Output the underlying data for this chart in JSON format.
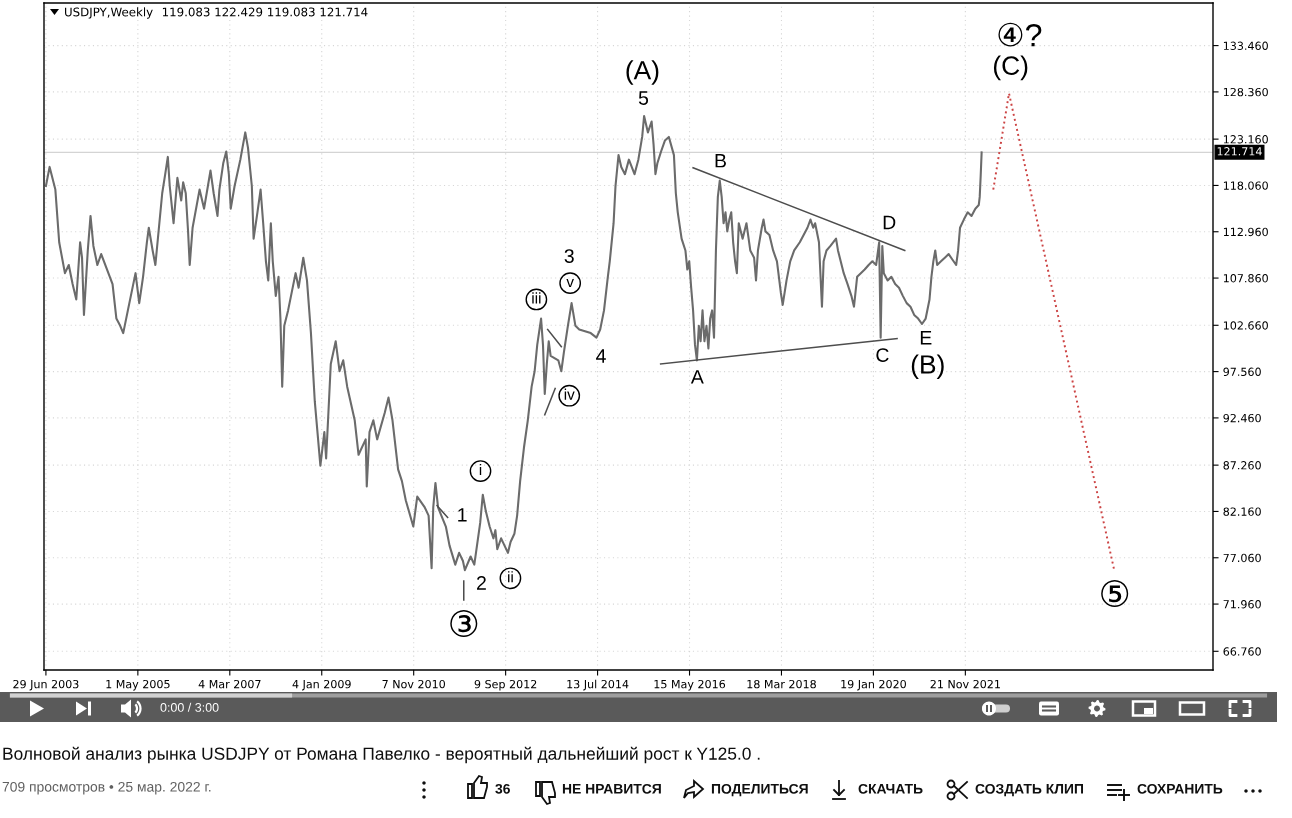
{
  "chart_data": {
    "type": "line",
    "title": "USDJPY,Weekly",
    "subtitle": "119.083 122.429 119.083 121.714",
    "xlim": [
      "2003-06-15",
      "2026-11-05"
    ],
    "ylim": [
      64.7,
      138.15
    ],
    "xticks": [
      {
        "value": "2003-06-29",
        "label": "29 Jun 2003"
      },
      {
        "value": "2005-05-01",
        "label": "1 May 2005"
      },
      {
        "value": "2007-03-04",
        "label": "4 Mar 2007"
      },
      {
        "value": "2009-01-04",
        "label": "4 Jan 2009"
      },
      {
        "value": "2010-11-07",
        "label": "7 Nov 2010"
      },
      {
        "value": "2012-09-09",
        "label": "9 Sep 2012"
      },
      {
        "value": "2014-07-13",
        "label": "13 Jul 2014"
      },
      {
        "value": "2016-05-15",
        "label": "15 May 2016"
      },
      {
        "value": "2018-03-18",
        "label": "18 Mar 2018"
      },
      {
        "value": "2020-01-19",
        "label": "19 Jan 2020"
      },
      {
        "value": "2021-11-21",
        "label": "21 Nov 2021"
      }
    ],
    "yticks": [
      {
        "value": 133.46,
        "label": "133.460"
      },
      {
        "value": 128.36,
        "label": "128.360"
      },
      {
        "value": 123.16,
        "label": "123.160"
      },
      {
        "value": 118.06,
        "label": "118.060"
      },
      {
        "value": 112.96,
        "label": "112.960"
      },
      {
        "value": 107.86,
        "label": "107.860"
      },
      {
        "value": 102.66,
        "label": "102.660"
      },
      {
        "value": 97.56,
        "label": "97.560"
      },
      {
        "value": 92.46,
        "label": "92.460"
      },
      {
        "value": 87.26,
        "label": "87.260"
      },
      {
        "value": 82.16,
        "label": "82.160"
      },
      {
        "value": 77.06,
        "label": "77.060"
      },
      {
        "value": 71.96,
        "label": "71.960"
      },
      {
        "value": 66.76,
        "label": "66.760"
      }
    ],
    "grid": true,
    "line_style": "solid",
    "series": [
      {
        "color": "#6b6b6b",
        "x": [
          "2003-06-29",
          "2003-07-26",
          "2003-09-06",
          "2003-10-04",
          "2003-11-15",
          "2003-12-13",
          "2004-01-10",
          "2004-02-06",
          "2004-03-05",
          "2004-03-19",
          "2004-04-02",
          "2004-04-30",
          "2004-05-20",
          "2004-06-10",
          "2004-07-09",
          "2004-08-06",
          "2004-10-28",
          "2004-11-25",
          "2004-12-23",
          "2005-01-14",
          "2005-02-17",
          "2005-04-14",
          "2005-05-11",
          "2005-06-08",
          "2005-07-06",
          "2005-07-20",
          "2005-08-17",
          "2005-09-06",
          "2005-10-26",
          "2005-11-17",
          "2005-12-06",
          "2005-12-20",
          "2006-01-17",
          "2006-02-14",
          "2006-03-14",
          "2006-03-28",
          "2006-04-16",
          "2006-05-03",
          "2006-05-15",
          "2006-06-05",
          "2006-07-26",
          "2006-08-28",
          "2006-09-25",
          "2006-10-14",
          "2006-11-06",
          "2006-12-04",
          "2006-12-18",
          "2007-01-15",
          "2007-02-06",
          "2007-02-25",
          "2007-03-11",
          "2007-04-08",
          "2007-05-20",
          "2007-06-25",
          "2007-07-15",
          "2007-08-12",
          "2007-08-25",
          "2007-09-22",
          "2007-10-15",
          "2007-11-03",
          "2007-11-23",
          "2007-12-10",
          "2007-12-29",
          "2008-01-12",
          "2008-02-03",
          "2008-02-23",
          "2008-03-08",
          "2008-03-21",
          "2008-04-05",
          "2008-05-03",
          "2008-06-27",
          "2008-07-19",
          "2008-08-22",
          "2008-09-18",
          "2008-10-17",
          "2008-11-14",
          "2008-12-25",
          "2009-01-23",
          "2009-02-05",
          "2009-02-19",
          "2009-03-11",
          "2009-04-16",
          "2009-05-14",
          "2009-06-10",
          "2009-07-09",
          "2009-09-02",
          "2009-09-30",
          "2009-11-21",
          "2009-11-29",
          "2009-12-19",
          "2010-01-16",
          "2010-02-13",
          "2010-04-09",
          "2010-05-07",
          "2010-06-05",
          "2010-07-16",
          "2010-08-13",
          "2010-09-10",
          "2010-11-04",
          "2010-12-03",
          "2011-01-27",
          "2011-02-24",
          "2011-03-18",
          "2011-03-30",
          "2011-04-15",
          "2011-05-04",
          "2011-06-30",
          "2011-07-27",
          "2011-09-07",
          "2011-10-05",
          "2011-11-02",
          "2011-11-16",
          "2011-12-28",
          "2012-01-24",
          "2012-03-07",
          "2012-03-26",
          "2012-04-17",
          "2012-05-15",
          "2012-06-12",
          "2012-06-26",
          "2012-07-10",
          "2012-08-07",
          "2012-09-26",
          "2012-10-15",
          "2012-11-12",
          "2012-12-02",
          "2012-12-24",
          "2013-01-21",
          "2013-02-18",
          "2013-03-18",
          "2013-04-09",
          "2013-04-28",
          "2013-05-26",
          "2013-06-09",
          "2013-06-22",
          "2013-07-07",
          "2013-07-21",
          "2013-08-04",
          "2013-09-29",
          "2013-10-21",
          "2013-11-09",
          "2013-12-08",
          "2014-01-04",
          "2014-02-01",
          "2014-03-01",
          "2014-05-24",
          "2014-07-05",
          "2014-08-01",
          "2014-08-29",
          "2014-09-26",
          "2014-10-10",
          "2014-11-07",
          "2014-11-21",
          "2014-12-13",
          "2015-01-02",
          "2015-01-29",
          "2015-02-27",
          "2015-04-09",
          "2015-05-07",
          "2015-06-04",
          "2015-06-18",
          "2015-07-16",
          "2015-08-12",
          "2015-08-26",
          "2015-09-09",
          "2015-09-23",
          "2015-10-20",
          "2015-11-17",
          "2015-12-16",
          "2016-01-22",
          "2016-02-05",
          "2016-02-19",
          "2016-03-18",
          "2016-04-15",
          "2016-04-29",
          "2016-05-13",
          "2016-05-27",
          "2016-06-10",
          "2016-06-24",
          "2016-07-08",
          "2016-07-22",
          "2016-08-04",
          "2016-08-18",
          "2016-09-01",
          "2016-09-16",
          "2016-09-30",
          "2016-10-13",
          "2016-10-27",
          "2016-11-10",
          "2016-11-24",
          "2016-12-08",
          "2016-12-22",
          "2017-01-05",
          "2017-01-19",
          "2017-02-02",
          "2017-02-15",
          "2017-03-02",
          "2017-03-16",
          "2017-03-30",
          "2017-04-13",
          "2017-04-26",
          "2017-05-10",
          "2017-06-07",
          "2017-07-05",
          "2017-08-02",
          "2017-08-30",
          "2017-09-13",
          "2017-09-27",
          "2017-10-25",
          "2017-11-07",
          "2017-11-21",
          "2017-12-20",
          "2018-01-16",
          "2018-02-13",
          "2018-03-13",
          "2018-03-27",
          "2018-04-24",
          "2018-05-21",
          "2018-06-19",
          "2018-07-30",
          "2018-09-24",
          "2018-10-16",
          "2018-11-05",
          "2018-11-19",
          "2018-12-17",
          "2019-01-08",
          "2019-01-20",
          "2019-02-10",
          "2019-03-11",
          "2019-04-21",
          "2019-05-05",
          "2019-06-16",
          "2019-07-14",
          "2019-08-11",
          "2019-08-30",
          "2019-09-22",
          "2019-10-19",
          "2019-11-16",
          "2019-12-15",
          "2020-01-11",
          "2020-02-08",
          "2020-03-01",
          "2020-03-12",
          "2020-03-24",
          "2020-04-04",
          "2020-05-02",
          "2020-05-29",
          "2020-06-26",
          "2020-07-24",
          "2020-08-21",
          "2020-09-18",
          "2020-10-16",
          "2020-11-12",
          "2020-12-11",
          "2021-01-08",
          "2021-02-04",
          "2021-03-04",
          "2021-03-18",
          "2021-04-01",
          "2021-04-15",
          "2021-04-29",
          "2021-05-27",
          "2021-06-24",
          "2021-07-22",
          "2021-08-18",
          "2021-09-15",
          "2021-09-29",
          "2021-10-13",
          "2021-11-10",
          "2021-12-08",
          "2022-01-05",
          "2022-02-02",
          "2022-02-27",
          "2022-03-06",
          "2022-03-13",
          "2022-03-20"
        ],
        "values": [
          118.0,
          120.1,
          117.6,
          111.8,
          108.4,
          109.3,
          107.2,
          105.5,
          111.8,
          110.1,
          103.8,
          110.9,
          114.7,
          111.4,
          109.3,
          110.5,
          107.2,
          103.4,
          102.6,
          101.8,
          104.3,
          108.4,
          105.1,
          108.0,
          111.8,
          113.4,
          110.9,
          109.3,
          117.2,
          119.3,
          121.2,
          118.0,
          113.9,
          118.9,
          116.4,
          118.4,
          117.2,
          113.0,
          109.3,
          113.4,
          117.6,
          115.5,
          118.0,
          119.7,
          117.2,
          114.7,
          117.6,
          120.5,
          121.8,
          119.3,
          115.5,
          118.0,
          120.9,
          123.9,
          122.2,
          118.0,
          112.2,
          115.1,
          117.6,
          113.9,
          109.7,
          107.6,
          113.9,
          109.7,
          105.9,
          108.0,
          103.4,
          95.9,
          102.6,
          104.3,
          108.4,
          106.8,
          110.1,
          107.6,
          101.8,
          94.3,
          87.2,
          90.9,
          88.0,
          92.2,
          98.4,
          100.9,
          97.6,
          98.8,
          95.9,
          92.2,
          88.4,
          90.1,
          84.9,
          90.9,
          92.2,
          90.1,
          93.0,
          94.7,
          92.2,
          86.8,
          85.5,
          83.4,
          80.5,
          83.8,
          82.6,
          81.7,
          75.9,
          82.6,
          85.3,
          82.6,
          80.5,
          78.4,
          76.3,
          77.6,
          76.7,
          75.7,
          77.2,
          76.3,
          80.9,
          84.0,
          82.2,
          80.5,
          79.2,
          80.1,
          78.0,
          79.2,
          77.6,
          78.8,
          79.7,
          81.7,
          85.5,
          89.2,
          92.2,
          95.9,
          97.6,
          100.5,
          103.4,
          100.5,
          95.1,
          98.4,
          100.9,
          99.3,
          98.8,
          97.6,
          99.7,
          102.6,
          105.1,
          102.6,
          102.2,
          101.8,
          101.3,
          102.2,
          104.3,
          108.0,
          109.7,
          113.9,
          118.0,
          121.4,
          120.1,
          119.3,
          120.9,
          119.3,
          120.9,
          123.4,
          125.7,
          123.9,
          125.1,
          122.6,
          119.3,
          120.5,
          121.8,
          123.0,
          123.4,
          121.4,
          117.2,
          115.1,
          112.2,
          110.9,
          108.8,
          109.7,
          106.8,
          104.3,
          100.5,
          98.8,
          102.6,
          100.9,
          104.3,
          100.9,
          102.6,
          100.1,
          103.4,
          104.3,
          101.3,
          110.9,
          116.8,
          118.6,
          116.8,
          113.9,
          115.1,
          113.0,
          114.3,
          115.1,
          111.8,
          109.7,
          108.4,
          113.9,
          112.2,
          113.9,
          110.9,
          110.1,
          107.6,
          110.9,
          113.4,
          114.3,
          113.0,
          112.6,
          110.9,
          109.7,
          106.3,
          104.9,
          107.6,
          109.7,
          110.9,
          111.8,
          113.4,
          114.3,
          113.4,
          113.9,
          111.8,
          104.7,
          109.7,
          110.9,
          111.4,
          112.2,
          110.9,
          108.4,
          107.2,
          105.9,
          104.7,
          108.0,
          108.4,
          108.8,
          109.3,
          109.7,
          109.3,
          111.8,
          101.3,
          111.4,
          108.4,
          107.6,
          108.0,
          107.2,
          106.8,
          105.9,
          105.1,
          104.7,
          103.8,
          103.4,
          102.8,
          103.4,
          105.5,
          108.0,
          109.7,
          110.9,
          109.3,
          109.7,
          110.1,
          110.5,
          109.9,
          109.3,
          110.9,
          113.4,
          114.3,
          115.1,
          114.7,
          115.5,
          115.9,
          116.8,
          119.1,
          121.7
        ]
      },
      {
        "color": "#cc4444",
        "line_style": "dotted",
        "x": [
          "2022-06-13",
          "2022-10-06",
          "2024-11-13"
        ],
        "values": [
          117.6,
          128.2,
          75.7
        ]
      },
      {
        "color": "#4d4d4d",
        "x": [
          "2016-06-10",
          "2020-09-04"
        ],
        "values": [
          120.0,
          110.9
        ]
      },
      {
        "color": "#4d4d4d",
        "x": [
          "2015-10-17",
          "2020-07-10"
        ],
        "values": [
          98.4,
          101.2
        ]
      },
      {
        "color": "#4d4d4d",
        "x": [
          "2013-07-13",
          "2013-10-21"
        ],
        "values": [
          102.2,
          100.3
        ]
      },
      {
        "color": "#4d4d4d",
        "x": [
          "2013-06-22",
          "2013-09-06"
        ],
        "values": [
          92.8,
          95.7
        ]
      },
      {
        "color": "#4d4d4d",
        "x": [
          "2011-04-27",
          "2011-07-13"
        ],
        "values": [
          82.8,
          81.5
        ]
      },
      {
        "color": "#4d4d4d",
        "x": [
          "2011-11-08",
          "2011-11-08"
        ],
        "values": [
          74.5,
          72.4
        ]
      }
    ],
    "ref_lines": [
      {
        "axis": "y",
        "value": 121.714,
        "label": "121.714",
        "color": "#d4d4d4"
      }
    ],
    "annotations": [
      "(A)",
      "5",
      "B",
      "D",
      "A",
      "C",
      "E",
      "(B)",
      "④?",
      "(C)",
      "3",
      "v",
      "iii",
      "iv",
      "4",
      "i",
      "1",
      "2",
      "ii",
      "③",
      "⑤",
      "Волновой анализ рынка USDJPY от Романа Павелко - вероятный дальнейший рост к Y125.0 .",
      "709 просмотров • 25 мар. 2022 г.",
      "0:00 / 3:00",
      "36",
      "НЕ НРАВИТСЯ",
      "ПОДЕЛИТЬСЯ",
      "СКАЧАТЬ",
      "СОЗДАТЬ КЛИП",
      "СОХРАНИТЬ"
    ]
  }
}
